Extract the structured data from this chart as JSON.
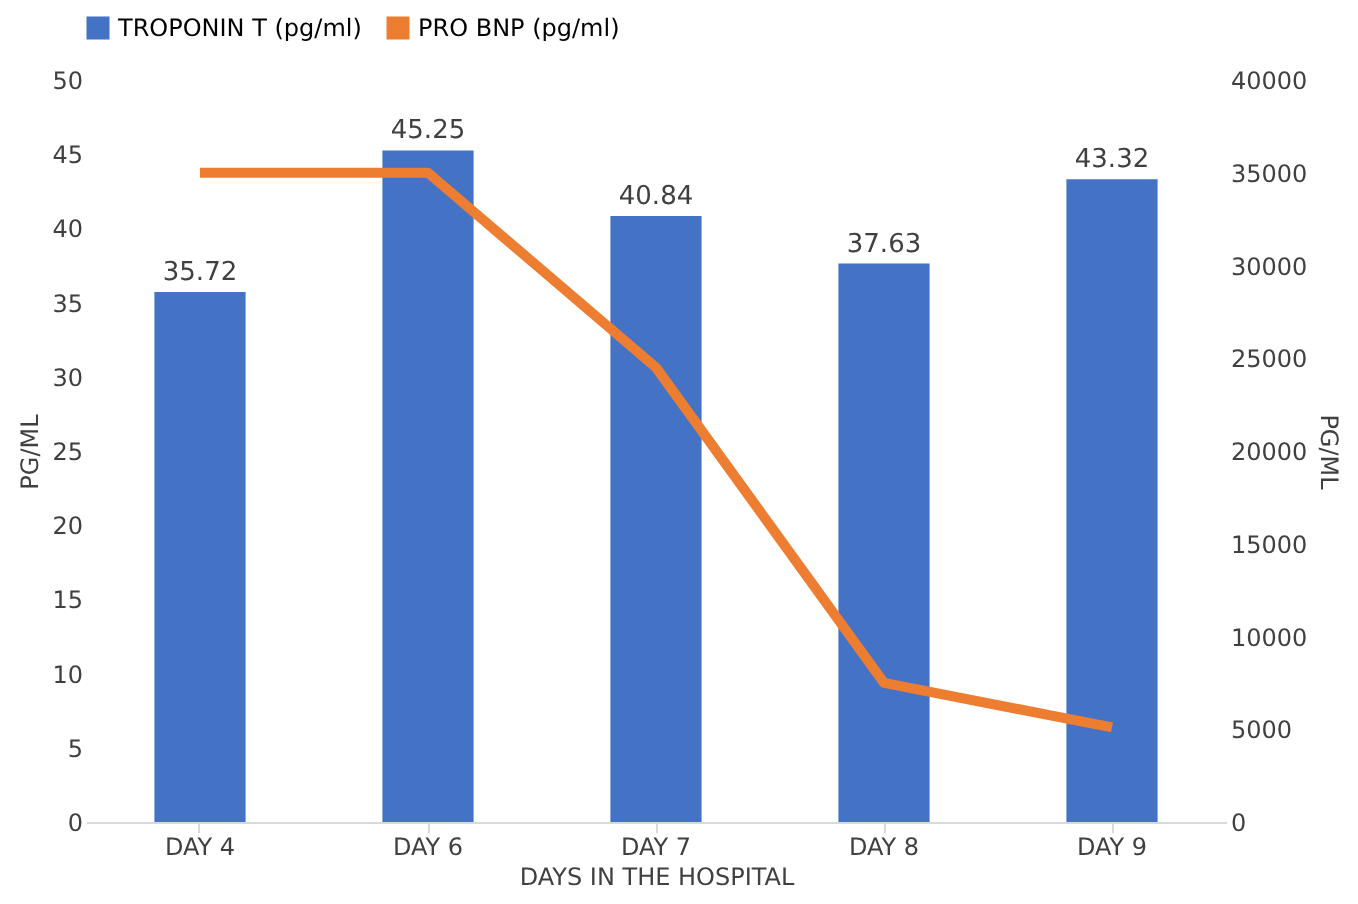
{
  "chart_data": {
    "type": "bar",
    "xlabel": "DAYS IN THE HOSPITAL",
    "ylabel": "PG/ML",
    "y2label": "PG/ML",
    "categories": [
      "DAY 4",
      "DAY 6",
      "DAY 7",
      "DAY 8",
      "DAY 9"
    ],
    "series": [
      {
        "name": "TROPONIN T (pg/ml)",
        "color": "#4472c4",
        "values": [
          35.72,
          45.25,
          40.84,
          37.63,
          43.32
        ],
        "value_labels": [
          "35.72",
          "45.25",
          "40.84",
          "37.63",
          "43.32"
        ]
      },
      {
        "name": "PRO BNP (pg/ml)",
        "color": "#ed7d31",
        "type": "line",
        "axis": "y2",
        "values": [
          35000,
          35000,
          24500,
          7500,
          5100
        ]
      }
    ],
    "ylim": [
      0,
      50
    ],
    "yticks": [
      0,
      5,
      10,
      15,
      20,
      25,
      30,
      35,
      40,
      45,
      50
    ],
    "y2lim": [
      0,
      40000
    ],
    "y2ticks": [
      0,
      5000,
      10000,
      15000,
      20000,
      25000,
      30000,
      35000,
      40000
    ],
    "legend": "top",
    "grid": false
  }
}
